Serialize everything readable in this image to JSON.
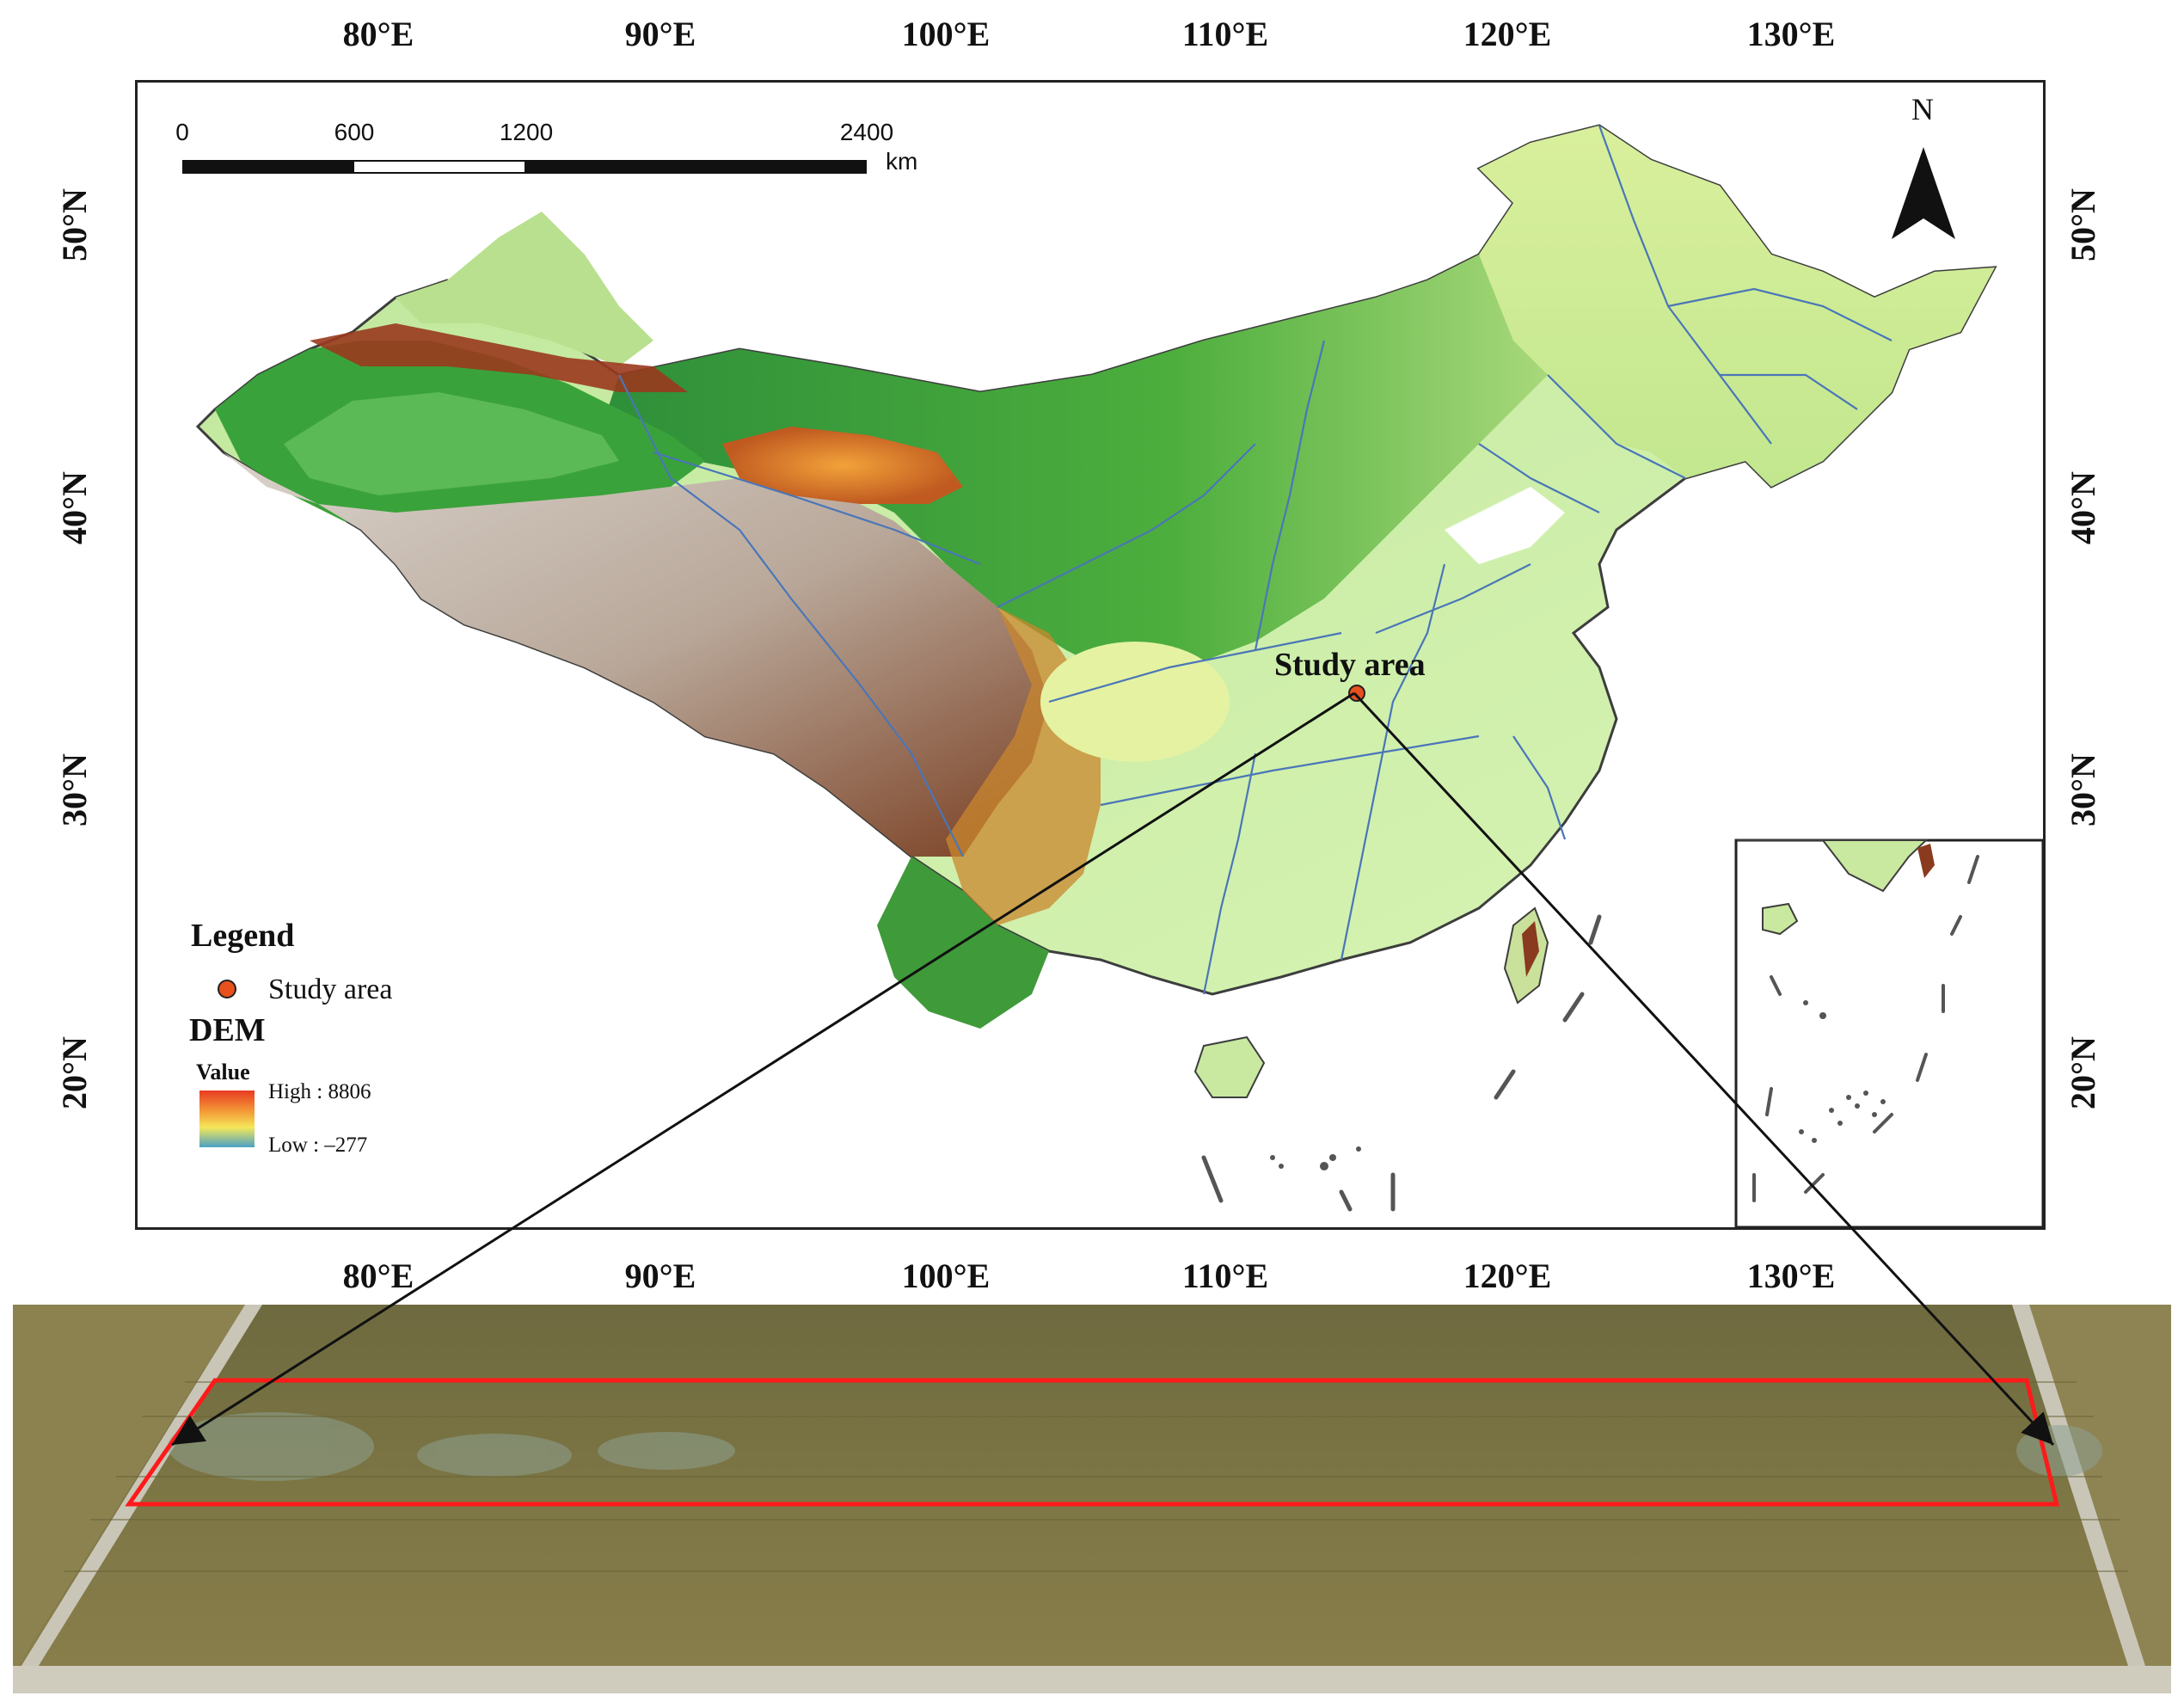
{
  "axes": {
    "longitude_ticks": [
      "80°E",
      "90°E",
      "100°E",
      "110°E",
      "120°E",
      "130°E"
    ],
    "latitude_ticks": [
      "50°N",
      "40°N",
      "30°N",
      "20°N"
    ]
  },
  "scale_bar": {
    "ticks": [
      "0",
      "600",
      "1200",
      "2400"
    ],
    "unit": "km"
  },
  "north_arrow": {
    "label": "N",
    "icon": "north-arrow-icon"
  },
  "study_area": {
    "label": "Study area",
    "marker_color": "#e8501e"
  },
  "legend": {
    "title": "Legend",
    "study_area_item": "Study area",
    "dem_title": "DEM",
    "value_label": "Value",
    "high": "High : 8806",
    "low": "Low : –277"
  },
  "colors": {
    "dem_high": "#e83b22",
    "dem_mid": "#f5e75a",
    "dem_low": "#4aa0c4",
    "boundary": "#4a76b8",
    "plateau": "#8a4a2a",
    "lowland": "#d9f2a8",
    "study_box": "#ff1a1a"
  }
}
